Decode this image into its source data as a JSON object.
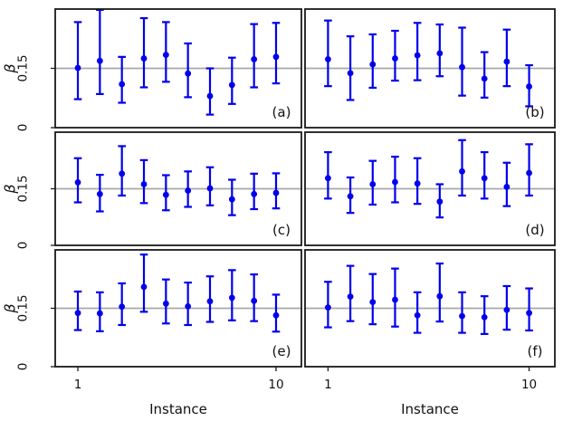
{
  "figure": {
    "xlabel": "Instance",
    "ylabel": "β",
    "panel_labels": [
      "(a)",
      "(b)",
      "(c)",
      "(d)",
      "(e)",
      "(f)"
    ],
    "colors": {
      "marker_blue": "#0000ee",
      "refline_gray": "#a8a8a8",
      "frame_black": "#1a1a1a",
      "background": "#ffffff"
    }
  },
  "chart_data": {
    "type": "scatter",
    "subtype": "errorbar-grid",
    "grid": {
      "rows": 3,
      "cols": 2
    },
    "xlabel": "Instance",
    "ylabel": "β",
    "xtick_values": [
      1,
      10
    ],
    "xtick_labels": [
      "1",
      "10"
    ],
    "ytick_values": [
      0,
      0.15
    ],
    "ytick_labels": [
      "0",
      "0.15"
    ],
    "ylim": [
      0,
      0.3
    ],
    "refline_y": 0.15,
    "grid_on": false,
    "legend": "none",
    "x": [
      1,
      2,
      3,
      4,
      5,
      6,
      7,
      8,
      9,
      10
    ],
    "series": [
      {
        "name": "(a)",
        "y": [
          0.151,
          0.169,
          0.11,
          0.175,
          0.184,
          0.137,
          0.08,
          0.108,
          0.173,
          0.179
        ],
        "y_lo": [
          0.072,
          0.085,
          0.063,
          0.102,
          0.116,
          0.077,
          0.033,
          0.06,
          0.102,
          0.112
        ],
        "y_hi": [
          0.267,
          0.298,
          0.179,
          0.277,
          0.267,
          0.213,
          0.15,
          0.177,
          0.262,
          0.265
        ]
      },
      {
        "name": "(b)",
        "y": [
          0.173,
          0.138,
          0.16,
          0.175,
          0.183,
          0.188,
          0.153,
          0.124,
          0.167,
          0.104
        ],
        "y_lo": [
          0.105,
          0.07,
          0.101,
          0.119,
          0.12,
          0.13,
          0.081,
          0.076,
          0.105,
          0.054
        ],
        "y_hi": [
          0.271,
          0.231,
          0.236,
          0.245,
          0.265,
          0.261,
          0.253,
          0.191,
          0.248,
          0.158
        ]
      },
      {
        "name": "(c)",
        "y": [
          0.167,
          0.136,
          0.19,
          0.162,
          0.134,
          0.145,
          0.151,
          0.122,
          0.136,
          0.139
        ],
        "y_lo": [
          0.114,
          0.09,
          0.132,
          0.112,
          0.093,
          0.102,
          0.106,
          0.08,
          0.096,
          0.098
        ],
        "y_hi": [
          0.231,
          0.187,
          0.263,
          0.226,
          0.186,
          0.196,
          0.207,
          0.174,
          0.19,
          0.191
        ]
      },
      {
        "name": "(d)",
        "y": [
          0.178,
          0.13,
          0.162,
          0.168,
          0.164,
          0.116,
          0.196,
          0.178,
          0.155,
          0.192
        ],
        "y_lo": [
          0.124,
          0.086,
          0.108,
          0.114,
          0.11,
          0.074,
          0.132,
          0.124,
          0.104,
          0.132
        ],
        "y_hi": [
          0.247,
          0.18,
          0.224,
          0.235,
          0.231,
          0.162,
          0.279,
          0.247,
          0.219,
          0.268
        ]
      },
      {
        "name": "(e)",
        "y": [
          0.138,
          0.137,
          0.154,
          0.205,
          0.162,
          0.155,
          0.168,
          0.177,
          0.169,
          0.132
        ],
        "y_lo": [
          0.094,
          0.091,
          0.107,
          0.141,
          0.111,
          0.107,
          0.115,
          0.119,
          0.117,
          0.09
        ],
        "y_hi": [
          0.193,
          0.191,
          0.214,
          0.288,
          0.224,
          0.216,
          0.232,
          0.248,
          0.237,
          0.185
        ]
      },
      {
        "name": "(f)",
        "y": [
          0.152,
          0.18,
          0.166,
          0.172,
          0.132,
          0.181,
          0.13,
          0.127,
          0.146,
          0.138
        ],
        "y_lo": [
          0.101,
          0.117,
          0.109,
          0.103,
          0.087,
          0.116,
          0.087,
          0.084,
          0.095,
          0.093
        ],
        "y_hi": [
          0.218,
          0.259,
          0.238,
          0.252,
          0.191,
          0.265,
          0.191,
          0.181,
          0.207,
          0.201
        ]
      }
    ]
  }
}
